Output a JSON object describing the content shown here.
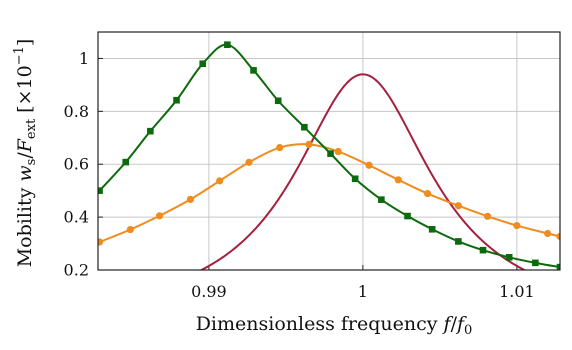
{
  "chart_data": {
    "type": "line",
    "xlabel": "Dimensionless frequency f/f0",
    "ylabel": "Mobility ws/Fext [×10−1]",
    "xlim": [
      0.9828,
      1.0128
    ],
    "ylim": [
      0.2,
      1.1
    ],
    "grid": true,
    "x_ticks": [
      {
        "value": 0.99,
        "label": "0.99"
      },
      {
        "value": 1.0,
        "label": "1"
      },
      {
        "value": 1.01,
        "label": "1.01"
      }
    ],
    "y_ticks": [
      {
        "value": 0.2,
        "label": "0.2"
      },
      {
        "value": 0.4,
        "label": "0.4"
      },
      {
        "value": 0.6,
        "label": "0.6"
      },
      {
        "value": 0.8,
        "label": "0.8"
      },
      {
        "value": 1.0,
        "label": "1"
      }
    ],
    "series": [
      {
        "color": "#a3203f",
        "marker": "none",
        "curve": {
          "peak": 0.94,
          "center": 1.0,
          "gamma": 0.00545
        }
      },
      {
        "color": "#f08c1e",
        "marker": "circle",
        "x": [
          0.9829,
          0.9849,
          0.9868,
          0.9888,
          0.9907,
          0.9926,
          0.9946,
          0.9965,
          0.9984,
          1.0004,
          1.0023,
          1.0042,
          1.0062,
          1.0081,
          1.01,
          1.012,
          1.0128
        ],
        "y": [
          0.306,
          0.353,
          0.405,
          0.467,
          0.537,
          0.607,
          0.663,
          0.675,
          0.648,
          0.596,
          0.541,
          0.489,
          0.443,
          0.403,
          0.368,
          0.338,
          0.327
        ]
      },
      {
        "color": "#0b6a0b",
        "marker": "square",
        "x": [
          0.9829,
          0.9846,
          0.9862,
          0.9879,
          0.9896,
          0.9912,
          0.9929,
          0.9945,
          0.9962,
          0.9979,
          0.9995,
          1.0012,
          1.0029,
          1.0045,
          1.0062,
          1.0078,
          1.0095,
          1.0112,
          1.0128
        ],
        "y": [
          0.5,
          0.608,
          0.725,
          0.842,
          0.98,
          1.052,
          0.955,
          0.84,
          0.74,
          0.64,
          0.545,
          0.466,
          0.404,
          0.354,
          0.308,
          0.275,
          0.248,
          0.227,
          0.211
        ]
      }
    ]
  },
  "axes": {
    "xlabel_parts": {
      "text": "Dimensionless frequency ",
      "var": "f",
      "slash": "/",
      "var2": "f",
      "sub2": "0"
    },
    "ylabel_parts": {
      "text": "Mobility ",
      "var": "w",
      "sub": "s",
      "slash": "/",
      "var2": "F",
      "sub2": "ext",
      "unit_open": "[×10",
      "unit_exp": "−1",
      "unit_close": "]"
    }
  }
}
